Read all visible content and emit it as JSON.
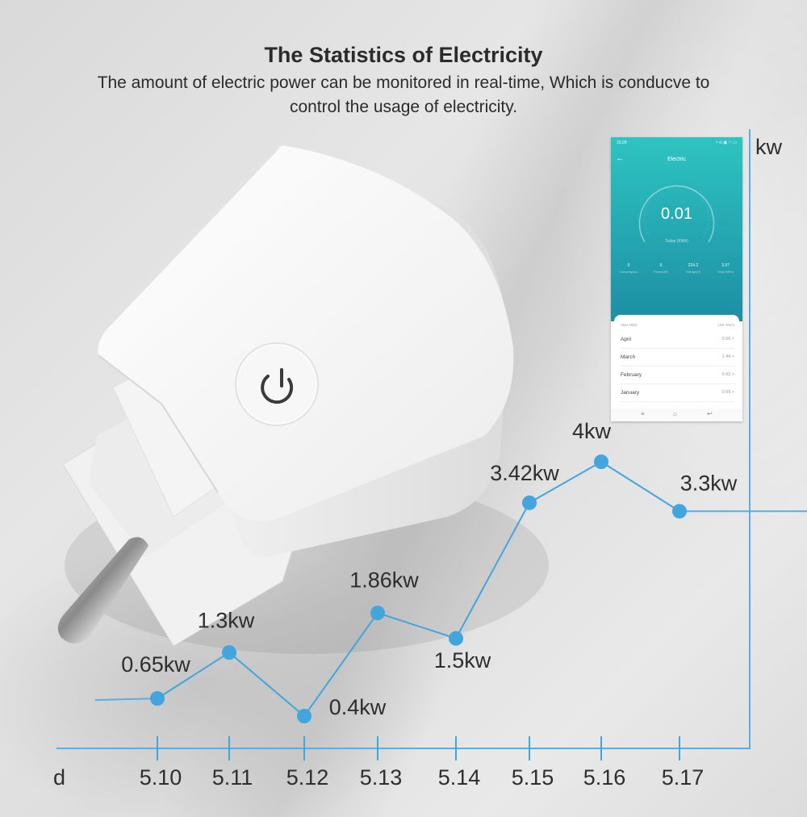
{
  "header": {
    "title": "The Statistics of Electricity",
    "subtitle_line1": "The amount of electric power can be monitored in real-time, Which is conducve to",
    "subtitle_line2": "control the usage of electricity."
  },
  "colors": {
    "accent": "#42a5dc",
    "text": "#2e2e2e",
    "app_teal": "#25a9b3"
  },
  "chart_data": {
    "type": "line",
    "xlabel": "d",
    "ylabel": "kw",
    "categories": [
      "5.10",
      "5.11",
      "5.12",
      "5.13",
      "5.14",
      "5.15",
      "5.16",
      "5.17"
    ],
    "values": [
      0.65,
      1.3,
      0.4,
      1.86,
      1.5,
      3.42,
      4,
      3.3
    ],
    "data_labels": [
      "0.65kw",
      "1.3kw",
      "0.4kw",
      "1.86kw",
      "1.5kw",
      "3.42kw",
      "4kw",
      "3.3kw"
    ],
    "ylim": [
      0,
      4.5
    ],
    "grid": false,
    "legend": "none"
  },
  "phone": {
    "status_time": "15:29",
    "status_icons": "ᵜ ⊙ ▣ ◠ ▭",
    "app_title": "Electric",
    "gauge_value": "0.01",
    "gauge_caption": "Today (KWh)",
    "stats": [
      {
        "value": "0",
        "label": "Consumption"
      },
      {
        "value": "0",
        "label": "Power(W)"
      },
      {
        "value": "224.2",
        "label": "Voltage(V)"
      },
      {
        "value": "3.97",
        "label": "Total (kWh)"
      }
    ],
    "year_label": "Year 2022",
    "unit_label": "Unit: kW.h",
    "months": [
      {
        "name": "April",
        "value": "0.56 >"
      },
      {
        "name": "March",
        "value": "1.44 >"
      },
      {
        "name": "February",
        "value": "0.92 >"
      },
      {
        "name": "January",
        "value": "0.69 >"
      }
    ],
    "nav": {
      "menu": "≡",
      "home": "⌂",
      "back": "↩"
    }
  }
}
